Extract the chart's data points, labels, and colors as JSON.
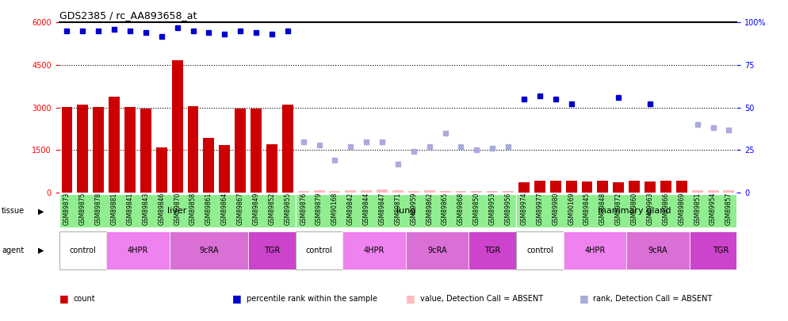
{
  "title": "GDS2385 / rc_AA893658_at",
  "samples": [
    "GSM89873",
    "GSM89875",
    "GSM89878",
    "GSM89881",
    "GSM89841",
    "GSM89843",
    "GSM89846",
    "GSM89870",
    "GSM89858",
    "GSM89861",
    "GSM89864",
    "GSM89867",
    "GSM89849",
    "GSM89852",
    "GSM89855",
    "GSM89876",
    "GSM89879",
    "GSM90168",
    "GSM89842",
    "GSM89844",
    "GSM89847",
    "GSM89871",
    "GSM89959",
    "GSM89862",
    "GSM89865",
    "GSM89868",
    "GSM89850",
    "GSM89953",
    "GSM89956",
    "GSM89974",
    "GSM89977",
    "GSM89980",
    "GSM90169",
    "GSM89845",
    "GSM89848",
    "GSM89872",
    "GSM89860",
    "GSM89963",
    "GSM89866",
    "GSM89869",
    "GSM89851",
    "GSM89954",
    "GSM89857"
  ],
  "count_values": [
    3020,
    3100,
    3020,
    3380,
    3020,
    2970,
    1580,
    4680,
    3040,
    1940,
    1680,
    2950,
    2950,
    1700,
    3100,
    60,
    70,
    60,
    80,
    70,
    110,
    70,
    60,
    70,
    60,
    60,
    60,
    60,
    60,
    350,
    430,
    430,
    430,
    380,
    430,
    360,
    430,
    390,
    430,
    430,
    70,
    70,
    70
  ],
  "percentile_values": [
    95,
    95,
    95,
    96,
    95,
    94,
    92,
    97,
    95,
    94,
    93,
    95,
    94,
    93,
    95,
    null,
    null,
    null,
    null,
    null,
    null,
    null,
    null,
    null,
    null,
    null,
    null,
    null,
    null,
    null,
    null,
    null,
    null,
    null,
    null,
    null,
    null,
    null,
    null,
    null,
    null,
    null,
    null
  ],
  "absent_rank_values": [
    null,
    null,
    null,
    null,
    null,
    null,
    null,
    null,
    null,
    null,
    null,
    null,
    null,
    null,
    null,
    30,
    28,
    19,
    27,
    30,
    30,
    17,
    24,
    27,
    35,
    27,
    25,
    26,
    27,
    null,
    null,
    null,
    null,
    null,
    null,
    null,
    null,
    null,
    null,
    null,
    null,
    null,
    null
  ],
  "absent_value_flags": [
    false,
    false,
    false,
    false,
    false,
    false,
    false,
    false,
    false,
    false,
    false,
    false,
    false,
    false,
    false,
    true,
    true,
    true,
    true,
    true,
    true,
    true,
    true,
    true,
    true,
    true,
    true,
    true,
    true,
    false,
    false,
    false,
    false,
    false,
    false,
    false,
    false,
    false,
    false,
    false,
    true,
    true,
    true
  ],
  "mammary_absent_rank": [
    null,
    null,
    null,
    null,
    null,
    null,
    null,
    null,
    null,
    null,
    null,
    null,
    null,
    null,
    null,
    null,
    null,
    null,
    null,
    null,
    null,
    null,
    null,
    null,
    null,
    null,
    null,
    null,
    null,
    null,
    null,
    null,
    null,
    null,
    null,
    null,
    null,
    null,
    null,
    null,
    40,
    38,
    37
  ],
  "mammary_blue_dots": [
    null,
    null,
    null,
    null,
    null,
    null,
    null,
    null,
    null,
    null,
    null,
    null,
    null,
    null,
    null,
    null,
    null,
    null,
    null,
    null,
    null,
    null,
    null,
    null,
    null,
    null,
    null,
    null,
    null,
    55,
    57,
    55,
    52,
    null,
    null,
    56,
    null,
    52,
    null,
    null,
    null,
    null,
    null
  ],
  "ylim_left": [
    0,
    6000
  ],
  "ylim_right": [
    0,
    100
  ],
  "yticks_left": [
    0,
    1500,
    3000,
    4500,
    6000
  ],
  "yticks_right": [
    0,
    25,
    50,
    75,
    100
  ],
  "bar_color": "#cc0000",
  "dot_color_blue": "#0000cc",
  "dot_color_absent_rank": "#aaaadd",
  "dot_color_absent_value": "#ffbbbb",
  "background_color": "#ffffff",
  "tick_bg_color": "#dddddd"
}
